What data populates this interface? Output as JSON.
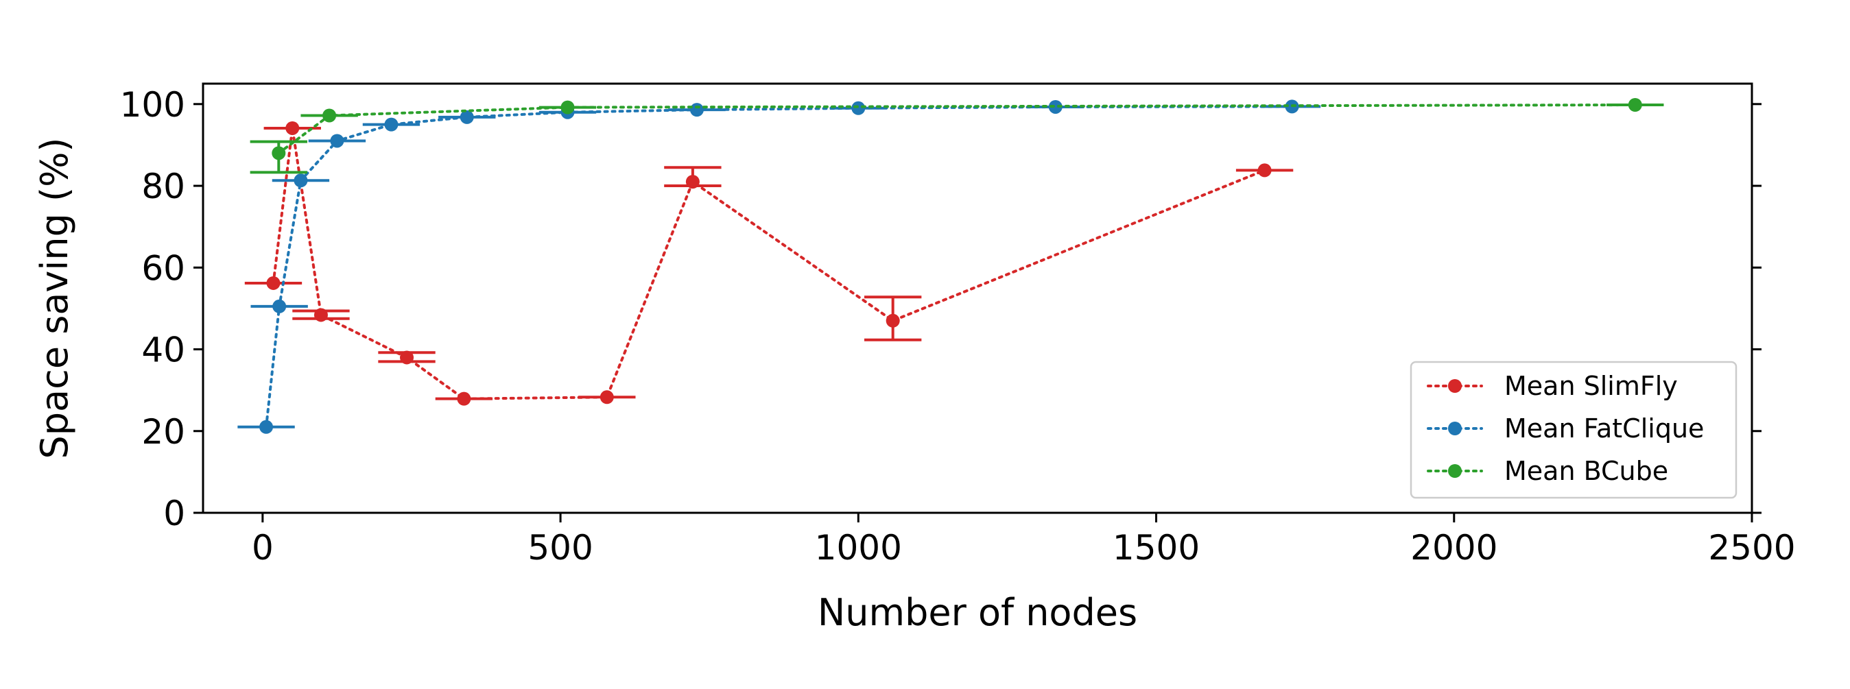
{
  "chart_data": {
    "type": "line",
    "title": "",
    "xlabel": "Number of nodes",
    "ylabel": "Space saving (%)",
    "xlim": [
      -100,
      2500
    ],
    "ylim": [
      0,
      105
    ],
    "xticks": [
      0,
      500,
      1000,
      1500,
      2000,
      2500
    ],
    "yticks": [
      0,
      20,
      40,
      60,
      80,
      100
    ],
    "xtick_labels": [
      "0",
      "500",
      "1000",
      "1500",
      "2000",
      "2500"
    ],
    "ytick_labels": [
      "0",
      "20",
      "40",
      "60",
      "80",
      "100"
    ],
    "grid": false,
    "legend_position": "lower-right",
    "line_style": "dotted",
    "marker": "circle",
    "series": [
      {
        "name": "Mean SlimFly",
        "color": "#d62728",
        "points": [
          {
            "x": 18,
            "y": 56.2,
            "ylo": 56.2,
            "yhi": 56.2,
            "cap": 48
          },
          {
            "x": 50,
            "y": 94.1,
            "ylo": 94.1,
            "yhi": 94.1,
            "cap": 48
          },
          {
            "x": 98,
            "y": 48.4,
            "ylo": 47.5,
            "yhi": 49.4,
            "cap": 48
          },
          {
            "x": 242,
            "y": 38.0,
            "ylo": 37.0,
            "yhi": 39.2,
            "cap": 48
          },
          {
            "x": 338,
            "y": 27.9,
            "ylo": 27.9,
            "yhi": 27.9,
            "cap": 48
          },
          {
            "x": 578,
            "y": 28.3,
            "ylo": 28.3,
            "yhi": 28.3,
            "cap": 48
          },
          {
            "x": 722,
            "y": 81.0,
            "ylo": 80.0,
            "yhi": 84.5,
            "cap": 48
          },
          {
            "x": 1058,
            "y": 47.0,
            "ylo": 42.3,
            "yhi": 52.8,
            "cap": 48
          },
          {
            "x": 1682,
            "y": 83.8,
            "ylo": 83.8,
            "yhi": 83.8,
            "cap": 48
          }
        ]
      },
      {
        "name": "Mean FatClique",
        "color": "#1f77b4",
        "points": [
          {
            "x": 6,
            "y": 21.0,
            "ylo": 21.0,
            "yhi": 21.0,
            "cap": 48
          },
          {
            "x": 28,
            "y": 50.5,
            "ylo": 50.5,
            "yhi": 50.5,
            "cap": 48
          },
          {
            "x": 64,
            "y": 81.3,
            "ylo": 81.3,
            "yhi": 81.3,
            "cap": 48
          },
          {
            "x": 125,
            "y": 91.0,
            "ylo": 91.0,
            "yhi": 91.0,
            "cap": 48
          },
          {
            "x": 216,
            "y": 95.0,
            "ylo": 95.0,
            "yhi": 95.0,
            "cap": 48
          },
          {
            "x": 343,
            "y": 96.8,
            "ylo": 96.8,
            "yhi": 96.8,
            "cap": 48
          },
          {
            "x": 512,
            "y": 98.0,
            "ylo": 98.0,
            "yhi": 98.0,
            "cap": 48
          },
          {
            "x": 729,
            "y": 98.6,
            "ylo": 98.6,
            "yhi": 98.6,
            "cap": 48
          },
          {
            "x": 1000,
            "y": 99.0,
            "ylo": 99.0,
            "yhi": 99.0,
            "cap": 48
          },
          {
            "x": 1331,
            "y": 99.3,
            "ylo": 99.3,
            "yhi": 99.3,
            "cap": 48
          },
          {
            "x": 1728,
            "y": 99.4,
            "ylo": 99.4,
            "yhi": 99.4,
            "cap": 48
          }
        ]
      },
      {
        "name": "Mean BCube",
        "color": "#2ca02c",
        "points": [
          {
            "x": 27,
            "y": 88.0,
            "ylo": 83.3,
            "yhi": 90.8,
            "cap": 48
          },
          {
            "x": 112,
            "y": 97.2,
            "ylo": 97.2,
            "yhi": 97.2,
            "cap": 48
          },
          {
            "x": 512,
            "y": 99.2,
            "ylo": 99.2,
            "yhi": 99.2,
            "cap": 48
          },
          {
            "x": 2304,
            "y": 99.8,
            "ylo": 99.8,
            "yhi": 99.8,
            "cap": 48
          }
        ]
      }
    ]
  }
}
